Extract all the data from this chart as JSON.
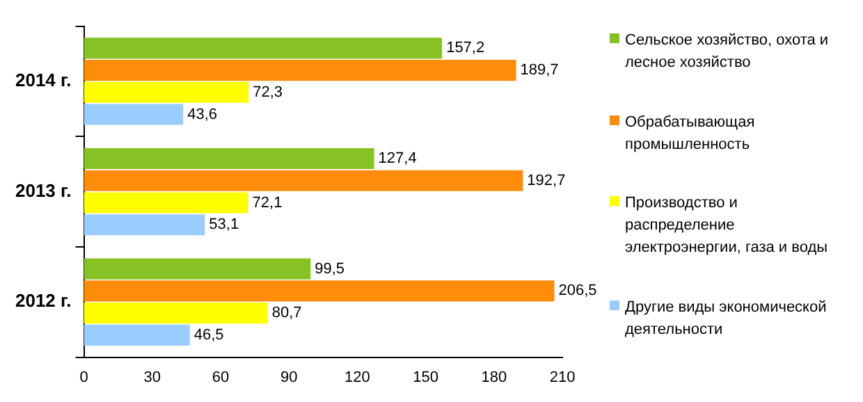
{
  "chart_data": {
    "type": "bar",
    "orientation": "horizontal",
    "categories": [
      "2014 г.",
      "2013 г.",
      "2012 г."
    ],
    "series": [
      {
        "name": "Сельское хозяйство, охота и лесное хозяйство",
        "color": "#86c224",
        "values": [
          157.2,
          127.4,
          99.5
        ],
        "value_labels": [
          "157,2",
          "127,4",
          "99,5"
        ]
      },
      {
        "name": "Обрабатывающая промышленность",
        "color": "#ff8c0a",
        "values": [
          189.7,
          192.7,
          206.5
        ],
        "value_labels": [
          "189,7",
          "192,7",
          "206,5"
        ]
      },
      {
        "name": "Производство и распределение электроэнергии, газа и воды",
        "color": "#ffff00",
        "values": [
          72.3,
          72.1,
          80.7
        ],
        "value_labels": [
          "72,3",
          "72,1",
          "80,7"
        ]
      },
      {
        "name": "Другие виды экономической деятельности",
        "color": "#99ccff",
        "values": [
          43.6,
          53.1,
          46.5
        ],
        "value_labels": [
          "43,6",
          "53,1",
          "46,5"
        ]
      }
    ],
    "xlim": [
      0,
      210
    ],
    "xticks": [
      0,
      30,
      60,
      90,
      120,
      150,
      180,
      210
    ],
    "legend": "right"
  }
}
